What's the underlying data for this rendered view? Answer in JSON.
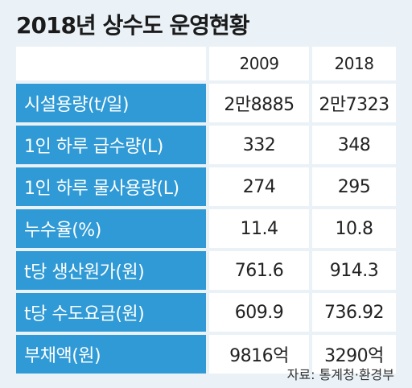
{
  "title": "2018년 상수도 운영현황",
  "source": "자료: 통계청·환경부",
  "colors": {
    "label_bg": "#2f9ad6",
    "page_bg": "#eaf2f8",
    "cell_bg": "#ffffff"
  },
  "chart_data": {
    "type": "table",
    "title": "2018년 상수도 운영현황",
    "columns": [
      "",
      "2009",
      "2018"
    ],
    "rows": [
      {
        "label": "시설용량(t/일)",
        "values": [
          "2만8885",
          "2만7323"
        ]
      },
      {
        "label": "1인 하루 급수량(L)",
        "values": [
          "332",
          "348"
        ]
      },
      {
        "label": "1인 하루 물사용량(L)",
        "values": [
          "274",
          "295"
        ]
      },
      {
        "label": "누수율(%)",
        "values": [
          "11.4",
          "10.8"
        ]
      },
      {
        "label": "t당 생산원가(원)",
        "values": [
          "761.6",
          "914.3"
        ]
      },
      {
        "label": "t당 수도요금(원)",
        "values": [
          "609.9",
          "736.92"
        ]
      },
      {
        "label": "부채액(원)",
        "values": [
          "9816억",
          "3290억"
        ]
      }
    ]
  }
}
